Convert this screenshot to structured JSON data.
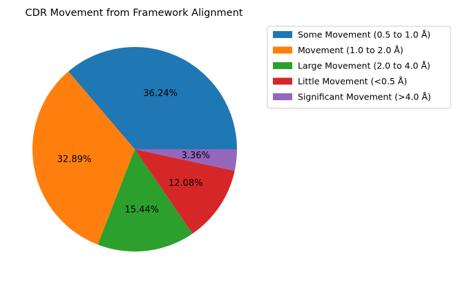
{
  "chart_data": {
    "type": "pie",
    "title": "CDR Movement from Framework Alignment",
    "slices": [
      {
        "label": "Some Movement (0.5 to 1.0 Å)",
        "value": 36.24,
        "pct_label": "36.24%",
        "color": "#1f77b4"
      },
      {
        "label": "Movement (1.0 to 2.0 Å)",
        "value": 32.89,
        "pct_label": "32.89%",
        "color": "#ff7f0e"
      },
      {
        "label": "Large Movement (2.0 to 4.0 Å)",
        "value": 15.44,
        "pct_label": "15.44%",
        "color": "#2ca02c"
      },
      {
        "label": "Little Movement (<0.5 Å)",
        "value": 12.08,
        "pct_label": "12.08%",
        "color": "#d62728"
      },
      {
        "label": "Significant Movement (>4.0 Å)",
        "value": 3.36,
        "pct_label": "3.36%",
        "color": "#9467bd"
      }
    ],
    "start_angle_deg": 0,
    "direction": "counterclockwise",
    "legend_position": "upper-right, outside plot"
  }
}
